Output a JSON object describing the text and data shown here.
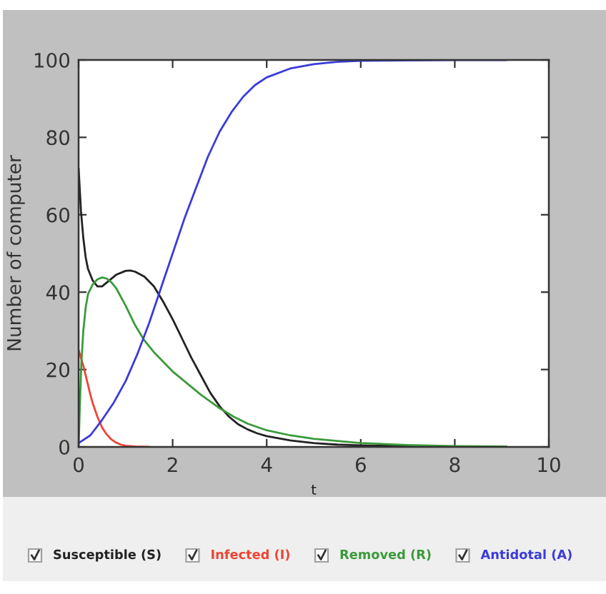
{
  "chart_data": {
    "type": "line",
    "xlabel": "t",
    "ylabel": "Number of computer",
    "xlim": [
      0,
      10
    ],
    "ylim": [
      0,
      100
    ],
    "xticks": [
      0,
      2,
      4,
      6,
      8,
      10
    ],
    "yticks": [
      0,
      20,
      40,
      60,
      80,
      100
    ],
    "legend": "bottom",
    "series": [
      {
        "name": "Susceptible (S)",
        "color": "#222222",
        "x": [
          0,
          0.05,
          0.1,
          0.15,
          0.2,
          0.3,
          0.4,
          0.5,
          0.6,
          0.8,
          1.0,
          1.1,
          1.2,
          1.4,
          1.6,
          1.8,
          2.0,
          2.2,
          2.4,
          2.6,
          2.8,
          3.0,
          3.2,
          3.4,
          3.6,
          3.8,
          4.0,
          4.5,
          5.0,
          5.5,
          6.0,
          7.0,
          8.0,
          9.1
        ],
        "values": [
          72,
          61,
          54,
          49,
          46,
          43,
          41.5,
          41.5,
          42.5,
          44.5,
          45.5,
          45.6,
          45.3,
          44,
          41.5,
          37.5,
          33,
          28,
          23,
          18.5,
          14,
          10.5,
          7.8,
          5.8,
          4.5,
          3.5,
          2.8,
          1.7,
          1.0,
          0.6,
          0.4,
          0.2,
          0.1,
          0
        ]
      },
      {
        "name": "Infected (I)",
        "color": "#ee4433",
        "x": [
          0,
          0.05,
          0.1,
          0.15,
          0.2,
          0.25,
          0.3,
          0.4,
          0.5,
          0.6,
          0.7,
          0.8,
          0.9,
          1.0,
          1.2,
          1.5
        ],
        "values": [
          25,
          23,
          21,
          18.5,
          16,
          13.5,
          11.3,
          7.8,
          5,
          3.2,
          1.9,
          1.1,
          0.6,
          0.3,
          0.1,
          0
        ]
      },
      {
        "name": "Removed (R)",
        "color": "#3a9a3a",
        "x": [
          0,
          0.03,
          0.06,
          0.1,
          0.15,
          0.2,
          0.3,
          0.4,
          0.5,
          0.6,
          0.7,
          0.8,
          1.0,
          1.2,
          1.4,
          1.6,
          1.8,
          2.0,
          2.3,
          2.6,
          3.0,
          3.3,
          3.6,
          4.0,
          4.5,
          5.0,
          6.0,
          7.0,
          8.0,
          9.1
        ],
        "values": [
          0,
          12,
          22,
          30,
          36,
          39.5,
          42,
          43.3,
          43.8,
          43.5,
          42.5,
          41,
          36.5,
          31.5,
          27.5,
          24.5,
          22,
          19.5,
          16.5,
          13.5,
          10,
          7.8,
          6,
          4.3,
          3,
          2.1,
          1,
          0.5,
          0.2,
          0.1
        ]
      },
      {
        "name": "Antidotal (A)",
        "color": "#3b3bd8",
        "x": [
          0,
          0.25,
          0.5,
          0.75,
          1,
          1.25,
          1.5,
          1.75,
          2,
          2.25,
          2.5,
          2.75,
          3,
          3.25,
          3.5,
          3.75,
          4,
          4.5,
          5,
          5.5,
          6,
          7,
          8,
          9.1
        ],
        "values": [
          1,
          3,
          7,
          11.5,
          17,
          24,
          32,
          41,
          50,
          59,
          67,
          75,
          81.5,
          86.5,
          90.5,
          93.5,
          95.5,
          97.8,
          98.9,
          99.5,
          99.8,
          99.9,
          100,
          100
        ]
      }
    ]
  }
}
